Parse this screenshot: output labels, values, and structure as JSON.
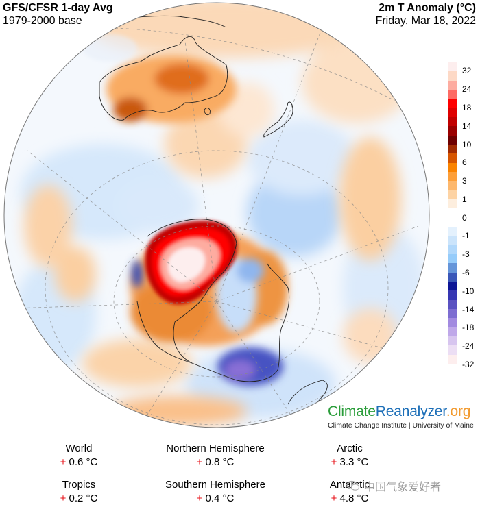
{
  "header": {
    "left_title": "GFS/CFSR 1-day Avg",
    "left_subtitle": "1979-2000 base",
    "right_title": "2m T Anomaly (°C)",
    "right_subtitle": "Friday, Mar 18, 2022"
  },
  "map": {
    "projection": "orthographic, southern hemisphere centered",
    "features": [
      "Australia",
      "New Zealand",
      "Antarctica",
      "South America (tip)",
      "Indonesia / New Guinea"
    ],
    "highlight": "Strong warm anomaly over East Antarctica (up to +32 °C)"
  },
  "colorbar": {
    "labels": [
      "32",
      "24",
      "18",
      "14",
      "10",
      "6",
      "3",
      "1",
      "0",
      "-1",
      "-3",
      "-6",
      "-10",
      "-14",
      "-18",
      "-24",
      "-32"
    ],
    "colors": [
      "#fdeeee",
      "#fdd9c6",
      "#fdaca0",
      "#fd6b64",
      "#fe0000",
      "#df0000",
      "#c10000",
      "#9a0000",
      "#6e0000",
      "#a12b02",
      "#d65500",
      "#fa8300",
      "#fd9f38",
      "#fdb86d",
      "#fdd3a4",
      "#fdeede",
      "#ffffff",
      "#ffffff",
      "#e4f1fd",
      "#cbe4fb",
      "#b1d8fb",
      "#96ccfa",
      "#6595d9",
      "#3a57b8",
      "#0d1696",
      "#3636b2",
      "#5a52c1",
      "#7d6dd1",
      "#a28ae0",
      "#bfa8e9",
      "#d7c5ef",
      "#ecdef4",
      "#fdeeee"
    ]
  },
  "logo": {
    "brand_part1": "Climate",
    "brand_part2": "Reanalyzer",
    "brand_part3": ".org",
    "subtitle": "Climate Change Institute | University of Maine"
  },
  "stats": [
    {
      "label": "World",
      "sign": "+",
      "value": "0.6 °C"
    },
    {
      "label": "Northern Hemisphere",
      "sign": "+",
      "value": "0.8 °C"
    },
    {
      "label": "Arctic",
      "sign": "+",
      "value": "3.3 °C"
    },
    {
      "label": "Tropics",
      "sign": "+",
      "value": "0.2 °C"
    },
    {
      "label": "Southern Hemisphere",
      "sign": "+",
      "value": "0.4 °C"
    },
    {
      "label": "Antarctic",
      "sign": "+",
      "value": "4.8 °C"
    }
  ],
  "watermark": {
    "text": "中国气象爱好者"
  }
}
